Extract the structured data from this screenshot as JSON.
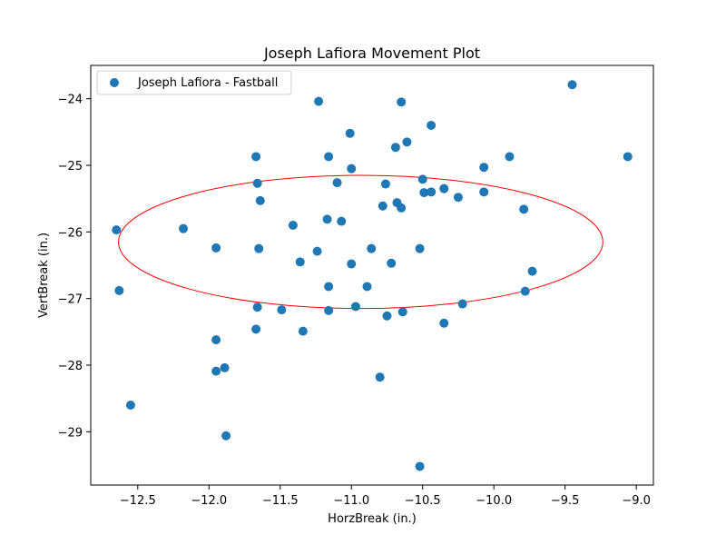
{
  "chart_data": {
    "type": "scatter",
    "title": "Joseph Lafiora Movement Plot",
    "xlabel": "HorzBreak (in.)",
    "ylabel": "VertBreak (in.)",
    "xlim": [
      -12.83,
      -8.88
    ],
    "ylim": [
      -29.8,
      -23.5
    ],
    "xticks": [
      -12.5,
      -12.0,
      -11.5,
      -11.0,
      -10.5,
      -10.0,
      -9.5,
      -9.0
    ],
    "xtick_labels": [
      "−12.5",
      "−12.0",
      "−11.5",
      "−11.0",
      "−10.5",
      "−10.0",
      "−9.5",
      "−9.0"
    ],
    "yticks": [
      -29,
      -28,
      -27,
      -26,
      -25,
      -24
    ],
    "ytick_labels": [
      "−29",
      "−28",
      "−27",
      "−26",
      "−25",
      "−24"
    ],
    "grid": false,
    "legend_position": "top-left",
    "colors": {
      "points": "#1f77b4",
      "ellipse": "#ff0000"
    },
    "series": [
      {
        "name": "Joseph Lafiora - Fastball",
        "points": [
          [
            -12.65,
            -25.97
          ],
          [
            -12.63,
            -26.88
          ],
          [
            -12.55,
            -28.6
          ],
          [
            -12.18,
            -25.95
          ],
          [
            -11.95,
            -26.24
          ],
          [
            -11.95,
            -27.62
          ],
          [
            -11.95,
            -28.09
          ],
          [
            -11.89,
            -28.04
          ],
          [
            -11.88,
            -29.06
          ],
          [
            -11.67,
            -24.87
          ],
          [
            -11.66,
            -25.27
          ],
          [
            -11.64,
            -25.53
          ],
          [
            -11.65,
            -26.25
          ],
          [
            -11.66,
            -27.13
          ],
          [
            -11.67,
            -27.46
          ],
          [
            -11.49,
            -27.17
          ],
          [
            -11.41,
            -25.9
          ],
          [
            -11.36,
            -26.45
          ],
          [
            -11.34,
            -27.49
          ],
          [
            -11.23,
            -24.04
          ],
          [
            -11.24,
            -26.29
          ],
          [
            -11.16,
            -24.87
          ],
          [
            -11.17,
            -25.81
          ],
          [
            -11.16,
            -26.82
          ],
          [
            -11.16,
            -27.18
          ],
          [
            -11.1,
            -25.26
          ],
          [
            -11.07,
            -25.84
          ],
          [
            -11.01,
            -24.52
          ],
          [
            -11.0,
            -25.05
          ],
          [
            -11.0,
            -26.48
          ],
          [
            -10.97,
            -27.12
          ],
          [
            -10.89,
            -26.82
          ],
          [
            -10.86,
            -26.25
          ],
          [
            -10.78,
            -25.61
          ],
          [
            -10.76,
            -25.28
          ],
          [
            -10.75,
            -27.26
          ],
          [
            -10.72,
            -26.47
          ],
          [
            -10.69,
            -24.73
          ],
          [
            -10.68,
            -25.56
          ],
          [
            -10.65,
            -24.05
          ],
          [
            -10.65,
            -25.64
          ],
          [
            -10.64,
            -27.2
          ],
          [
            -10.61,
            -24.65
          ],
          [
            -10.8,
            -28.18
          ],
          [
            -10.52,
            -26.25
          ],
          [
            -10.5,
            -25.21
          ],
          [
            -10.49,
            -25.41
          ],
          [
            -10.44,
            -24.4
          ],
          [
            -10.44,
            -25.4
          ],
          [
            -10.35,
            -25.35
          ],
          [
            -10.35,
            -27.37
          ],
          [
            -10.25,
            -25.48
          ],
          [
            -10.22,
            -27.08
          ],
          [
            -10.07,
            -25.03
          ],
          [
            -10.07,
            -25.4
          ],
          [
            -9.89,
            -24.87
          ],
          [
            -9.79,
            -25.66
          ],
          [
            -9.78,
            -26.89
          ],
          [
            -9.73,
            -26.59
          ],
          [
            -9.45,
            -23.79
          ],
          [
            -9.06,
            -24.87
          ],
          [
            -10.52,
            -29.52
          ]
        ]
      }
    ],
    "ellipse": {
      "center": [
        -10.935,
        -26.15
      ],
      "rx": 1.0,
      "ry": 1.0
    }
  }
}
